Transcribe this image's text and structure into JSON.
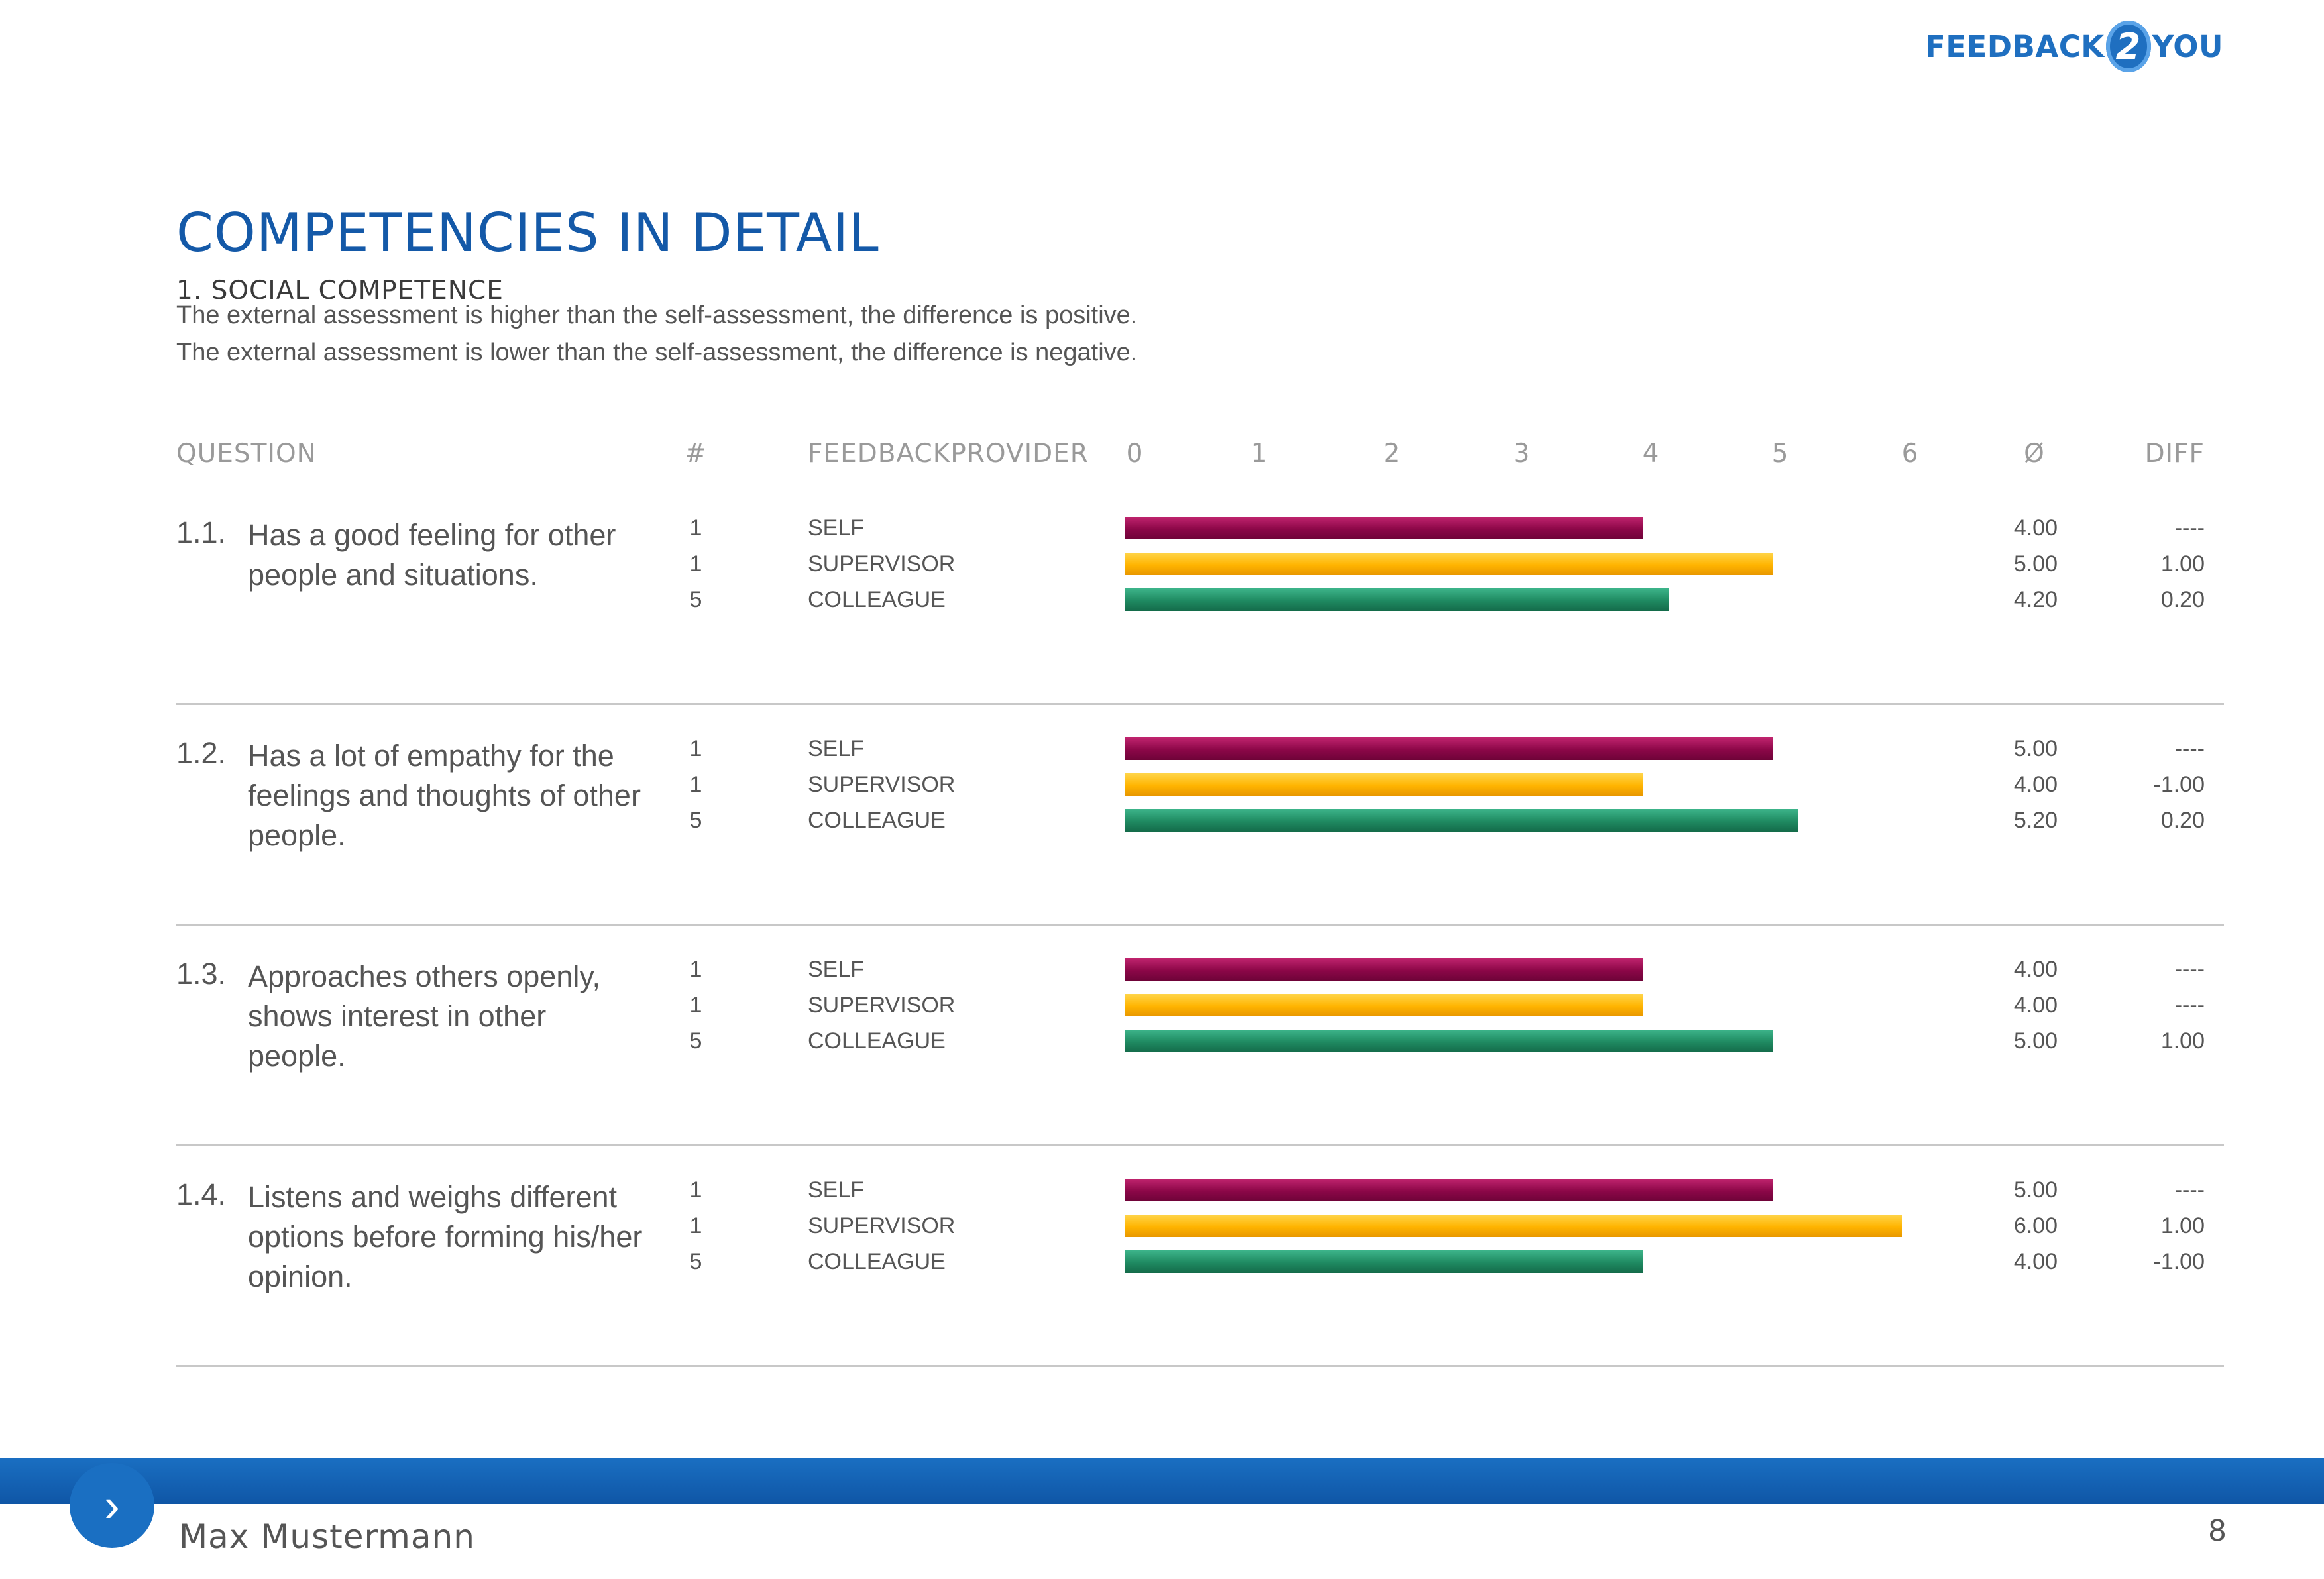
{
  "logo": {
    "left": "FEEDBACK",
    "mid": "2",
    "right": "YOU"
  },
  "title": "COMPETENCIES IN DETAIL",
  "subtitle": "1. SOCIAL COMPETENCE",
  "description": [
    "The external assessment is higher than the self-assessment, the difference is positive.",
    "The external assessment is lower than the self-assessment, the difference is negative."
  ],
  "headers": {
    "question": "QUESTION",
    "count": "#",
    "provider": "FEEDBACKPROVIDER",
    "avg": "Ø",
    "diff": "DIFF"
  },
  "colors": {
    "self": "#8c0748",
    "supervisor": "#ffb400",
    "colleague": "#1f8a61",
    "title": "#1459a8",
    "footer": "#1a6fc2"
  },
  "chart_data": {
    "type": "bar",
    "orientation": "horizontal",
    "xlim": [
      0,
      6
    ],
    "ticks": [
      "0",
      "1",
      "2",
      "3",
      "4",
      "5",
      "6"
    ],
    "questions": [
      {
        "number": "1.1.",
        "text": "Has a good feeling for other people and situations.",
        "rows": [
          {
            "count": "1",
            "provider": "SELF",
            "key": "self",
            "value": 4.0,
            "avg": "4.00",
            "diff": "----"
          },
          {
            "count": "1",
            "provider": "SUPERVISOR",
            "key": "supervisor",
            "value": 5.0,
            "avg": "5.00",
            "diff": "1.00"
          },
          {
            "count": "5",
            "provider": "COLLEAGUE",
            "key": "colleague",
            "value": 4.2,
            "avg": "4.20",
            "diff": "0.20"
          }
        ]
      },
      {
        "number": "1.2.",
        "text": "Has a lot of empathy for the feelings and thoughts of other people.",
        "rows": [
          {
            "count": "1",
            "provider": "SELF",
            "key": "self",
            "value": 5.0,
            "avg": "5.00",
            "diff": "----"
          },
          {
            "count": "1",
            "provider": "SUPERVISOR",
            "key": "supervisor",
            "value": 4.0,
            "avg": "4.00",
            "diff": "-1.00"
          },
          {
            "count": "5",
            "provider": "COLLEAGUE",
            "key": "colleague",
            "value": 5.2,
            "avg": "5.20",
            "diff": "0.20"
          }
        ]
      },
      {
        "number": "1.3.",
        "text": "Approaches others openly, shows interest in other people.",
        "rows": [
          {
            "count": "1",
            "provider": "SELF",
            "key": "self",
            "value": 4.0,
            "avg": "4.00",
            "diff": "----"
          },
          {
            "count": "1",
            "provider": "SUPERVISOR",
            "key": "supervisor",
            "value": 4.0,
            "avg": "4.00",
            "diff": "----"
          },
          {
            "count": "5",
            "provider": "COLLEAGUE",
            "key": "colleague",
            "value": 5.0,
            "avg": "5.00",
            "diff": "1.00"
          }
        ]
      },
      {
        "number": "1.4.",
        "text": "Listens and weighs different options before forming his/her opinion.",
        "rows": [
          {
            "count": "1",
            "provider": "SELF",
            "key": "self",
            "value": 5.0,
            "avg": "5.00",
            "diff": "----"
          },
          {
            "count": "1",
            "provider": "SUPERVISOR",
            "key": "supervisor",
            "value": 6.0,
            "avg": "6.00",
            "diff": "1.00"
          },
          {
            "count": "5",
            "provider": "COLLEAGUE",
            "key": "colleague",
            "value": 4.0,
            "avg": "4.00",
            "diff": "-1.00"
          }
        ]
      }
    ]
  },
  "footer": {
    "name": "Max Mustermann",
    "page": "8",
    "nav_icon": "chevron-right-icon"
  }
}
